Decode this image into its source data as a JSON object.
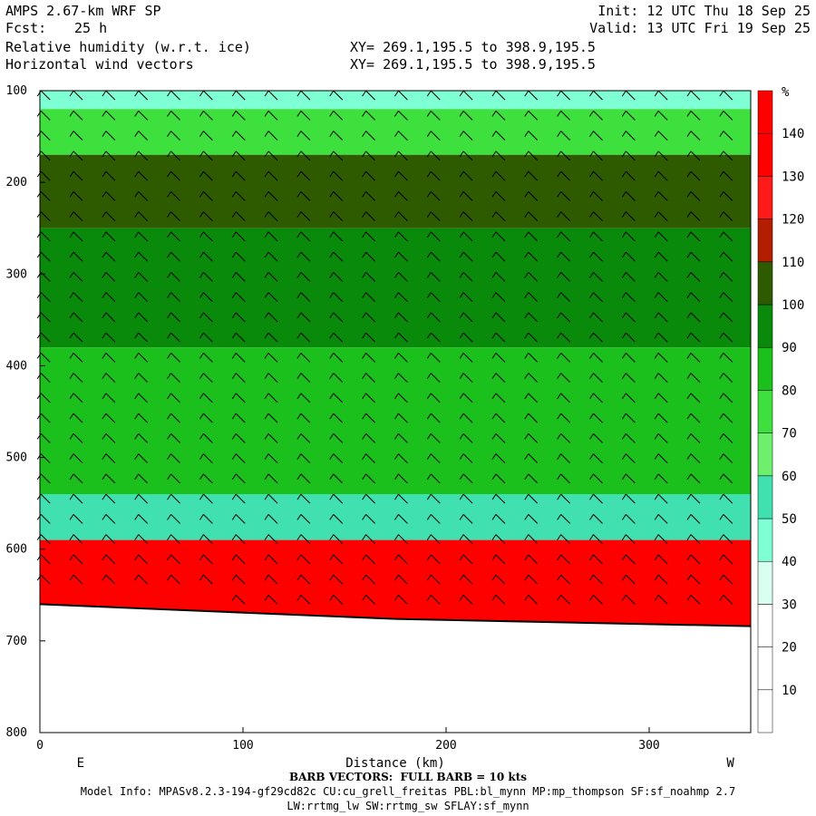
{
  "header": {
    "model": "AMPS 2.67-km WRF SP",
    "forecast_label": "Fcst:",
    "forecast_value": "25 h",
    "init": "Init: 12 UTC Thu 18 Sep 25",
    "valid": "Valid: 13 UTC Fri 19 Sep 25",
    "field1": "Relative humidity (w.r.t. ice)",
    "field2": "Horizontal wind vectors",
    "xy1": "XY= 269.1,195.5 to 398.9,195.5",
    "xy2": "XY= 269.1,195.5 to 398.9,195.5"
  },
  "chart_data": {
    "type": "heatmap",
    "xlabel": "Distance (km)",
    "ylabel": "",
    "xlim": [
      0,
      350
    ],
    "ylim": [
      800,
      100
    ],
    "x_ticks": [
      0,
      100,
      200,
      300
    ],
    "y_ticks": [
      100,
      200,
      300,
      400,
      500,
      600,
      700,
      800
    ],
    "x_end_labels": {
      "left": "E",
      "right": "W"
    },
    "colorbar": {
      "unit": "%",
      "levels": [
        10,
        20,
        30,
        40,
        50,
        60,
        70,
        80,
        90,
        100,
        110,
        120,
        130,
        140
      ],
      "colors": [
        "#ffffff",
        "#ffffff",
        "#ffffff",
        "#d8fff0",
        "#7fffd4",
        "#40e0b0",
        "#6ef06e",
        "#3ee03e",
        "#1cc01c",
        "#0a8a0a",
        "#2e5a00",
        "#b41e00",
        "#ff1a1a",
        "#ff0000",
        "#ff0000"
      ]
    },
    "terrain_pressure_hpa": [
      [
        0,
        660
      ],
      [
        175,
        676
      ],
      [
        350,
        684
      ]
    ],
    "rh_layers_top_to_bottom": [
      {
        "p_top": 100,
        "p_bottom": 120,
        "rh": 45
      },
      {
        "p_top": 120,
        "p_bottom": 170,
        "rh": 75
      },
      {
        "p_top": 170,
        "p_bottom": 250,
        "rh": 105
      },
      {
        "p_top": 250,
        "p_bottom": 380,
        "rh": 95
      },
      {
        "p_top": 380,
        "p_bottom": 540,
        "rh": 80
      },
      {
        "p_top": 540,
        "p_bottom": 590,
        "rh": 50
      },
      {
        "p_top": 590,
        "p_bottom": 670,
        "rh": 130
      }
    ]
  },
  "footer": {
    "barb_note": "BARB VECTORS:  FULL BARB = 10 kts",
    "model_info": "Model Info: MPASv8.2.3-194-gf29cd82c CU:cu_grell_freitas PBL:bl_mynn MP:mp_thompson SF:sf_noahmp 2.7",
    "model_info2": "LW:rrtmg_lw SW:rrtmg_sw SFLAY:sf_mynn"
  }
}
